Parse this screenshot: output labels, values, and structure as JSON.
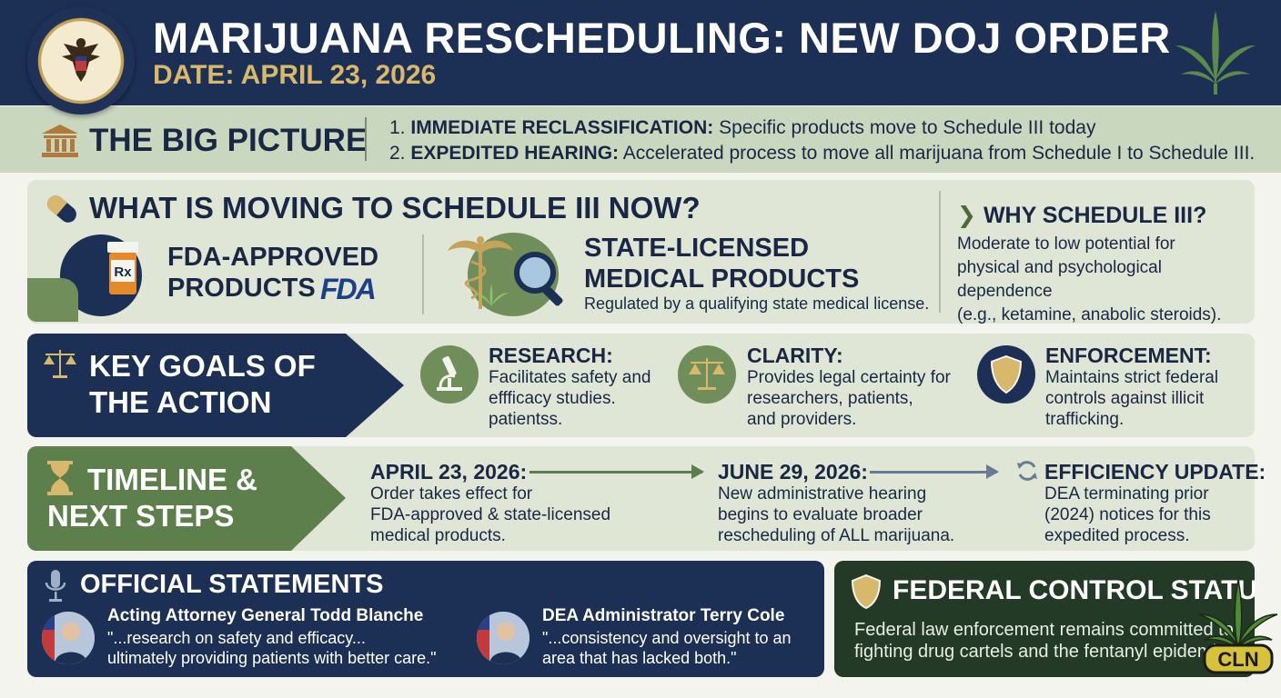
{
  "header": {
    "title": "MARIJUANA RESCHEDULING: NEW DOJ ORDER",
    "date": "DATE: APRIL 23, 2026",
    "seal_icon": "doj-seal-icon",
    "leaf_icon": "cannabis-leaf-icon",
    "colors": {
      "navy": "#1c2f55",
      "gold": "#d8b86a",
      "green": "#5c7f4c",
      "sage": "#c9d7bf"
    }
  },
  "big_picture": {
    "label": "THE BIG PICTURE",
    "items": [
      {
        "num": "1.",
        "bold": "IMMEDIATE RECLASSIFICATION:",
        "text": "Specific products move to Schedule III today"
      },
      {
        "num": "2.",
        "bold": "EXPEDITED HEARING:",
        "text": "Accelerated process to move all marijuana from Schedule I to Schedule III."
      }
    ]
  },
  "moving": {
    "heading": "WHAT IS MOVING TO SCHEDULE III NOW?",
    "fda": {
      "line1": "FDA-APPROVED",
      "line2": "PRODUCTS",
      "logo": "FDA",
      "rx": "Rx"
    },
    "state": {
      "line1": "STATE-LICENSED",
      "line2": "MEDICAL PRODUCTS",
      "sub": "Regulated by a qualifying state medical license."
    },
    "why": {
      "heading": "WHY SCHEDULE III?",
      "lines": [
        "Moderate to low potential for",
        "physical and psychological dependence",
        "(e.g., ketamine, anabolic steroids)."
      ]
    }
  },
  "goals": {
    "heading_line1": "KEY GOALS OF",
    "heading_line2": "THE ACTION",
    "items": [
      {
        "title": "RESEARCH:",
        "lines": [
          "Facilitates safety and",
          "effficacy studies.",
          "patientss."
        ]
      },
      {
        "title": "CLARITY:",
        "lines": [
          "Provides legal certainty for",
          "researchers, patients,",
          "and providers."
        ]
      },
      {
        "title": "ENFORCEMENT:",
        "lines": [
          "Maintains strict federal",
          "controls against illicit",
          "trafficking."
        ]
      }
    ]
  },
  "timeline": {
    "heading_line1": "TIMELINE &",
    "heading_line2": "NEXT STEPS",
    "items": [
      {
        "title": "APRIL 23, 2026:",
        "lines": [
          "Order takes effect for",
          "FDA-approved & state-licensed",
          "medical products."
        ]
      },
      {
        "title": "JUNE 29, 2026:",
        "lines": [
          "New administrative hearing",
          "begins to evaluate broader",
          "rescheduling of ALL marijuana."
        ]
      },
      {
        "title": "EFFICIENCY UPDATE:",
        "lines": [
          "DEA terminating prior",
          "(2024) notices for this",
          "expedited process."
        ]
      }
    ]
  },
  "official": {
    "heading": "OFFICIAL STATEMENTS",
    "quotes": [
      {
        "name": "Acting Attorney General Todd Blanche",
        "lines": [
          "\"...research on safety and efficacy...",
          "ultimately providing patients with better care.\""
        ]
      },
      {
        "name": "DEA Administrator Terry Cole",
        "lines": [
          "\"...consistency and oversight to an",
          "area that has lacked both.\""
        ]
      }
    ]
  },
  "federal": {
    "heading": "FEDERAL CONTROL STATUS",
    "lines": [
      "Federal law enforcement remains committed to",
      "fighting drug cartels and the fentanyl epidemic."
    ],
    "badge": "CLN"
  }
}
